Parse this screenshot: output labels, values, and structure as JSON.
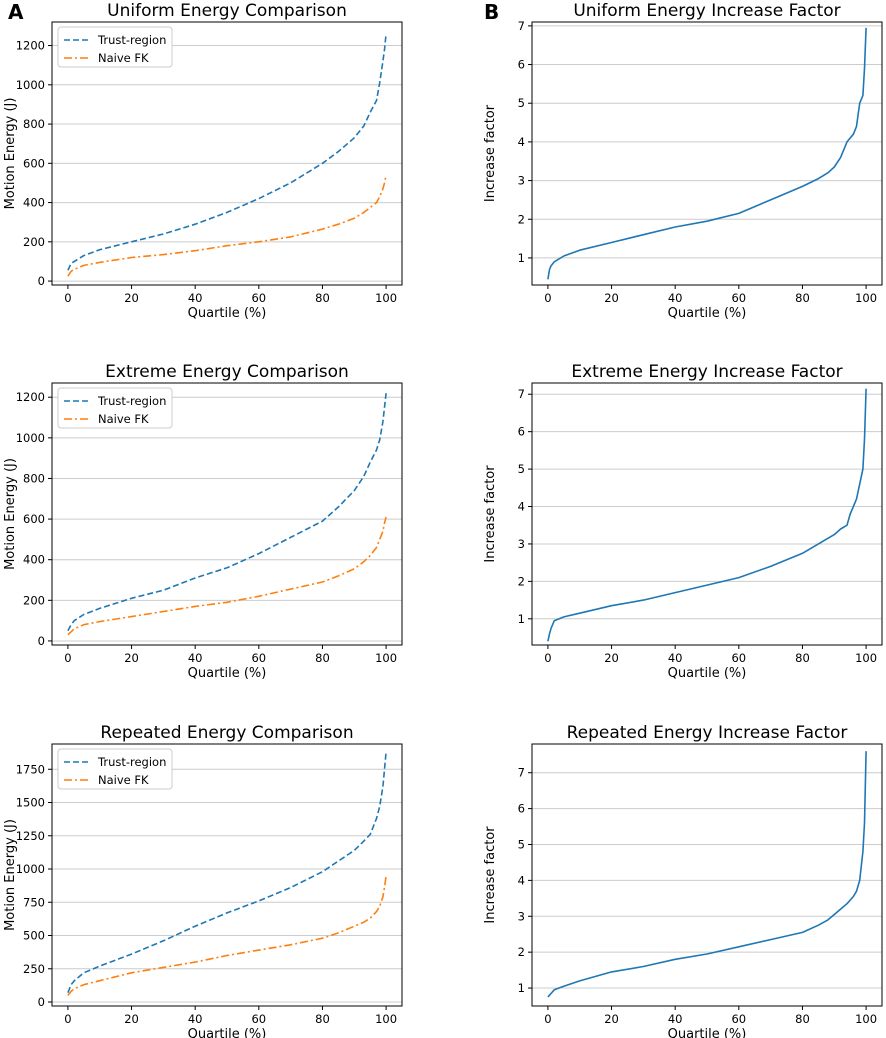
{
  "panel_labels": {
    "left": "A",
    "right": "B"
  },
  "colors": {
    "trust_region": "#1f77b4",
    "naive_fk": "#ff7f0e",
    "factor": "#1f77b4",
    "grid": "#cccccc"
  },
  "chart_data": [
    {
      "id": "uniform-energy",
      "type": "line",
      "title": "Uniform Energy Comparison",
      "xlabel": "Quartile (%)",
      "ylabel": "Motion Energy (J)",
      "xlim": [
        -5,
        105
      ],
      "ylim": [
        -20,
        1320
      ],
      "xticks": [
        0,
        20,
        40,
        60,
        80,
        100
      ],
      "yticks": [
        0,
        200,
        400,
        600,
        800,
        1000,
        1200
      ],
      "ytick_labels": [
        "0",
        "200",
        "400",
        "600",
        "800",
        "1000",
        "1200"
      ],
      "grid": "y",
      "legend": "top-left",
      "x": [
        0,
        1,
        2,
        5,
        10,
        20,
        30,
        40,
        50,
        60,
        70,
        80,
        85,
        90,
        93,
        95,
        97,
        98,
        99,
        99.5,
        100
      ],
      "series": [
        {
          "name": "Trust-region",
          "style": "dashed",
          "values": [
            55,
            90,
            100,
            130,
            160,
            200,
            240,
            290,
            350,
            420,
            500,
            600,
            660,
            730,
            790,
            860,
            920,
            1010,
            1120,
            1180,
            1260
          ]
        },
        {
          "name": "Naive FK",
          "style": "dashdot",
          "values": [
            25,
            50,
            60,
            80,
            95,
            120,
            135,
            155,
            180,
            200,
            225,
            265,
            290,
            320,
            350,
            375,
            400,
            430,
            470,
            500,
            540
          ]
        }
      ]
    },
    {
      "id": "uniform-factor",
      "type": "line",
      "title": "Uniform Energy Increase Factor",
      "xlabel": "Quartile (%)",
      "ylabel": "Increase factor",
      "xlim": [
        -5,
        105
      ],
      "ylim": [
        0.3,
        7.1
      ],
      "xticks": [
        0,
        20,
        40,
        60,
        80,
        100
      ],
      "yticks": [
        1,
        2,
        3,
        4,
        5,
        6,
        7
      ],
      "ytick_labels": [
        "1",
        "2",
        "3",
        "4",
        "5",
        "6",
        "7"
      ],
      "grid": "y",
      "x": [
        0,
        0.5,
        1,
        2,
        5,
        10,
        20,
        30,
        40,
        50,
        60,
        70,
        80,
        85,
        88,
        90,
        92,
        94,
        95,
        96,
        97,
        98,
        99,
        99.5,
        100
      ],
      "series": [
        {
          "name": "Increase factor",
          "style": "solid",
          "values": [
            0.45,
            0.7,
            0.8,
            0.9,
            1.05,
            1.2,
            1.4,
            1.6,
            1.8,
            1.95,
            2.15,
            2.5,
            2.85,
            3.05,
            3.2,
            3.35,
            3.6,
            4.0,
            4.1,
            4.2,
            4.4,
            5.0,
            5.2,
            5.9,
            6.95
          ]
        }
      ]
    },
    {
      "id": "extreme-energy",
      "type": "line",
      "title": "Extreme Energy Comparison",
      "xlabel": "Quartile (%)",
      "ylabel": "Motion Energy (J)",
      "xlim": [
        -5,
        105
      ],
      "ylim": [
        -20,
        1270
      ],
      "xticks": [
        0,
        20,
        40,
        60,
        80,
        100
      ],
      "yticks": [
        0,
        200,
        400,
        600,
        800,
        1000,
        1200
      ],
      "ytick_labels": [
        "0",
        "200",
        "400",
        "600",
        "800",
        "1000",
        "1200"
      ],
      "grid": "y",
      "legend": "top-left",
      "x": [
        0,
        1,
        2,
        5,
        10,
        20,
        30,
        40,
        50,
        60,
        70,
        80,
        85,
        90,
        93,
        95,
        97,
        98,
        99,
        99.5,
        100
      ],
      "series": [
        {
          "name": "Trust-region",
          "style": "dashed",
          "values": [
            50,
            80,
            100,
            130,
            160,
            210,
            250,
            310,
            360,
            430,
            510,
            590,
            660,
            740,
            810,
            880,
            940,
            990,
            1080,
            1150,
            1220
          ]
        },
        {
          "name": "Naive FK",
          "style": "dashdot",
          "values": [
            30,
            45,
            60,
            80,
            95,
            120,
            145,
            170,
            190,
            220,
            255,
            290,
            320,
            355,
            390,
            420,
            460,
            500,
            540,
            580,
            610
          ]
        }
      ]
    },
    {
      "id": "extreme-factor",
      "type": "line",
      "title": "Extreme Energy Increase Factor",
      "xlabel": "Quartile (%)",
      "ylabel": "Increase factor",
      "xlim": [
        -5,
        105
      ],
      "ylim": [
        0.3,
        7.3
      ],
      "xticks": [
        0,
        20,
        40,
        60,
        80,
        100
      ],
      "yticks": [
        1,
        2,
        3,
        4,
        5,
        6,
        7
      ],
      "ytick_labels": [
        "1",
        "2",
        "3",
        "4",
        "5",
        "6",
        "7"
      ],
      "grid": "y",
      "x": [
        0,
        0.5,
        1,
        2,
        5,
        10,
        20,
        30,
        40,
        50,
        60,
        70,
        80,
        85,
        88,
        90,
        92,
        94,
        95,
        96,
        97,
        98,
        99,
        99.5,
        100
      ],
      "series": [
        {
          "name": "Increase factor",
          "style": "solid",
          "values": [
            0.4,
            0.6,
            0.75,
            0.95,
            1.05,
            1.15,
            1.35,
            1.5,
            1.7,
            1.9,
            2.1,
            2.4,
            2.75,
            3.0,
            3.15,
            3.25,
            3.4,
            3.5,
            3.8,
            4.0,
            4.2,
            4.6,
            5.0,
            5.8,
            7.15
          ]
        }
      ]
    },
    {
      "id": "repeated-energy",
      "type": "line",
      "title": "Repeated Energy Comparison",
      "xlabel": "Quartile (%)",
      "ylabel": "Motion Energy (J)",
      "xlim": [
        -5,
        105
      ],
      "ylim": [
        -30,
        1940
      ],
      "xticks": [
        0,
        20,
        40,
        60,
        80,
        100
      ],
      "yticks": [
        0,
        250,
        500,
        750,
        1000,
        1250,
        1500,
        1750
      ],
      "ytick_labels": [
        "0",
        "250",
        "500",
        "750",
        "1000",
        "1250",
        "1500",
        "1750"
      ],
      "grid": "y",
      "legend": "top-left",
      "x": [
        0,
        1,
        2,
        5,
        10,
        20,
        30,
        40,
        50,
        60,
        70,
        80,
        85,
        90,
        93,
        95,
        97,
        98,
        99,
        99.5,
        100
      ],
      "series": [
        {
          "name": "Trust-region",
          "style": "dashed",
          "values": [
            70,
            130,
            160,
            220,
            270,
            360,
            460,
            570,
            670,
            760,
            860,
            980,
            1060,
            1140,
            1210,
            1260,
            1380,
            1470,
            1620,
            1750,
            1880
          ]
        },
        {
          "name": "Naive FK",
          "style": "dashdot",
          "values": [
            50,
            80,
            100,
            130,
            160,
            220,
            260,
            300,
            350,
            390,
            430,
            480,
            520,
            570,
            600,
            630,
            680,
            720,
            790,
            860,
            950
          ]
        }
      ]
    },
    {
      "id": "repeated-factor",
      "type": "line",
      "title": "Repeated Energy Increase Factor",
      "xlabel": "Quartile (%)",
      "ylabel": "Increase factor",
      "xlim": [
        -5,
        105
      ],
      "ylim": [
        0.5,
        7.8
      ],
      "xticks": [
        0,
        20,
        40,
        60,
        80,
        100
      ],
      "yticks": [
        1,
        2,
        3,
        4,
        5,
        6,
        7
      ],
      "ytick_labels": [
        "1",
        "2",
        "3",
        "4",
        "5",
        "6",
        "7"
      ],
      "grid": "y",
      "x": [
        0,
        0.5,
        1,
        2,
        5,
        10,
        20,
        30,
        40,
        50,
        60,
        70,
        80,
        85,
        88,
        90,
        92,
        94,
        95,
        96,
        97,
        98,
        99,
        99.5,
        100
      ],
      "series": [
        {
          "name": "Increase factor",
          "style": "solid",
          "values": [
            0.75,
            0.8,
            0.85,
            0.95,
            1.05,
            1.2,
            1.45,
            1.6,
            1.8,
            1.95,
            2.15,
            2.35,
            2.55,
            2.75,
            2.9,
            3.05,
            3.2,
            3.35,
            3.45,
            3.55,
            3.7,
            4.0,
            4.8,
            5.6,
            7.6
          ]
        }
      ]
    }
  ]
}
